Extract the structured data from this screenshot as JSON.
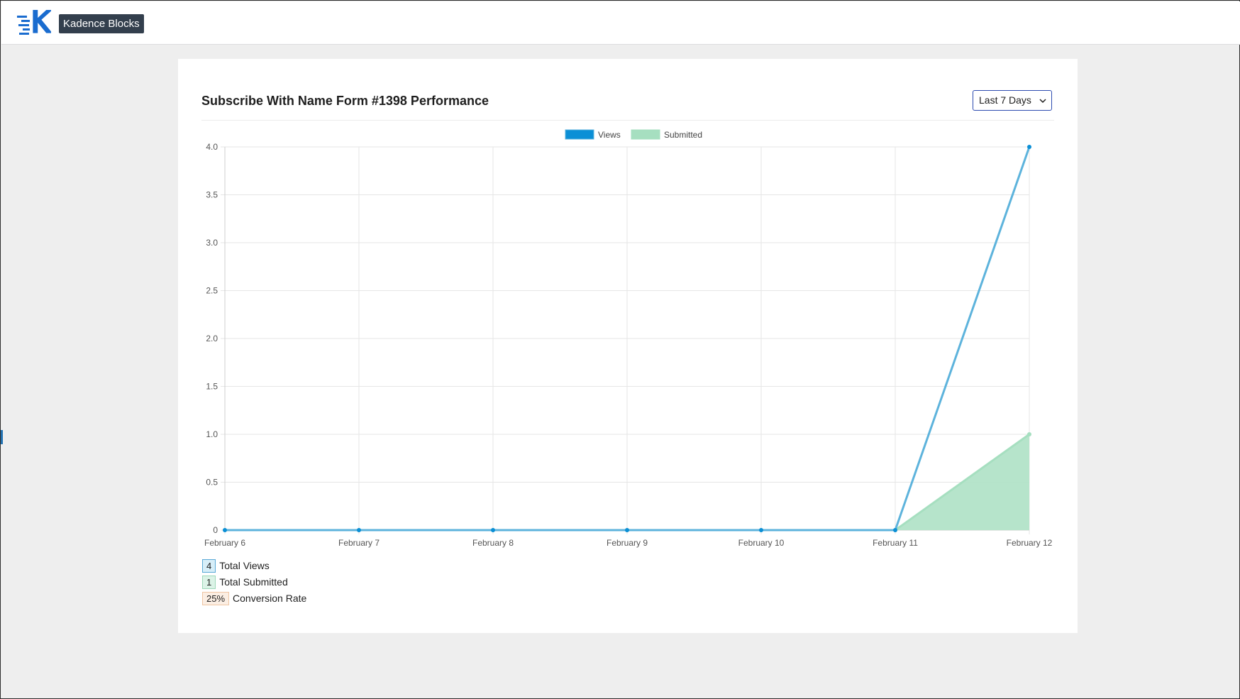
{
  "header": {
    "logo_icon": "kadence-k-logo-icon",
    "brand_label": "Kadence Blocks"
  },
  "panel": {
    "title": "Subscribe With Name Form #1398 Performance",
    "range_select": {
      "value": "Last 7 Days",
      "icon": "chevron-down-icon"
    }
  },
  "chart_data": {
    "type": "line",
    "categories": [
      "February 6",
      "February 7",
      "February 8",
      "February 9",
      "February 10",
      "February 11",
      "February 12"
    ],
    "series": [
      {
        "name": "Views",
        "values": [
          0,
          0,
          0,
          0,
          0,
          0,
          4
        ],
        "color": "#5db3dc",
        "point_color": "#0b8fd6",
        "legend_color": "#0b8fd6",
        "fill": false
      },
      {
        "name": "Submitted",
        "values": [
          0,
          0,
          0,
          0,
          0,
          0,
          1
        ],
        "color": "#a6dfc0",
        "point_color": "#a6dfc0",
        "legend_color": "#a6dfc0",
        "fill": true,
        "fill_color": "#b2e3c8"
      }
    ],
    "y_ticks": [
      "0",
      "0.5",
      "1.0",
      "1.5",
      "2.0",
      "2.5",
      "3.0",
      "3.5",
      "4.0"
    ],
    "ylim": [
      0,
      4
    ],
    "grid": true,
    "legend_placement": "top-center"
  },
  "stats": [
    {
      "value": "4",
      "label": "Total Views",
      "kind": "views"
    },
    {
      "value": "1",
      "label": "Total Submitted",
      "kind": "sub"
    },
    {
      "value": "25%",
      "label": "Conversion Rate",
      "kind": "conv"
    }
  ]
}
